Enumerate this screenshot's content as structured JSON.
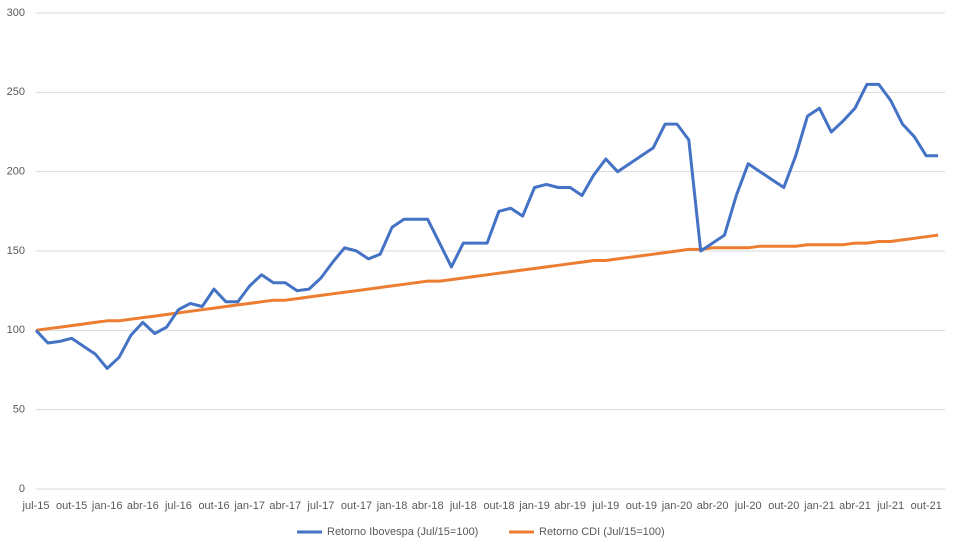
{
  "chart_data": {
    "type": "line",
    "categories": [
      "jul-15",
      null,
      null,
      "out-15",
      null,
      null,
      "jan-16",
      null,
      null,
      "abr-16",
      null,
      null,
      "jul-16",
      null,
      null,
      "out-16",
      null,
      null,
      "jan-17",
      null,
      null,
      "abr-17",
      null,
      null,
      "jul-17",
      null,
      null,
      "out-17",
      null,
      null,
      "jan-18",
      null,
      null,
      "abr-18",
      null,
      null,
      "jul-18",
      null,
      null,
      "out-18",
      null,
      null,
      "jan-19",
      null,
      null,
      "abr-19",
      null,
      null,
      "jul-19",
      null,
      null,
      "out-19",
      null,
      null,
      "jan-20",
      null,
      null,
      "abr-20",
      null,
      null,
      "jul-20",
      null,
      null,
      "out-20",
      null,
      null,
      "jan-21",
      null,
      null,
      "abr-21",
      null,
      null,
      "jul-21",
      null,
      null,
      "out-21",
      null
    ],
    "series": [
      {
        "name": "Retorno Ibovespa (Jul/15=100)",
        "color": "#4472c4",
        "values": [
          100,
          92,
          93,
          95,
          90,
          85,
          76,
          83,
          97,
          105,
          98,
          102,
          113,
          117,
          115,
          126,
          118,
          118,
          128,
          135,
          130,
          130,
          125,
          126,
          133,
          143,
          152,
          150,
          145,
          148,
          165,
          170,
          170,
          170,
          155,
          140,
          155,
          155,
          155,
          175,
          177,
          172,
          190,
          192,
          190,
          190,
          185,
          198,
          208,
          200,
          205,
          210,
          215,
          230,
          230,
          220,
          150,
          155,
          160,
          185,
          205,
          200,
          195,
          190,
          210,
          235,
          240,
          225,
          232,
          240,
          255,
          255,
          245,
          230,
          222,
          210,
          210
        ]
      },
      {
        "name": "Retorno CDI (Jul/15=100)",
        "color": "#ed7d31",
        "values": [
          100,
          101,
          102,
          103,
          104,
          105,
          106,
          106,
          107,
          108,
          109,
          110,
          111,
          112,
          113,
          114,
          115,
          116,
          117,
          118,
          119,
          119,
          120,
          121,
          122,
          123,
          124,
          125,
          126,
          127,
          128,
          129,
          130,
          131,
          131,
          132,
          133,
          134,
          135,
          136,
          137,
          138,
          139,
          140,
          141,
          142,
          143,
          144,
          144,
          145,
          146,
          147,
          148,
          149,
          150,
          151,
          151,
          152,
          152,
          152,
          152,
          153,
          153,
          153,
          153,
          154,
          154,
          154,
          154,
          155,
          155,
          156,
          156,
          157,
          158,
          159,
          160
        ]
      }
    ],
    "ylim": [
      0,
      300
    ],
    "yticks": [
      0,
      50,
      100,
      150,
      200,
      250,
      300
    ],
    "grid": true,
    "legend": "bottom"
  }
}
